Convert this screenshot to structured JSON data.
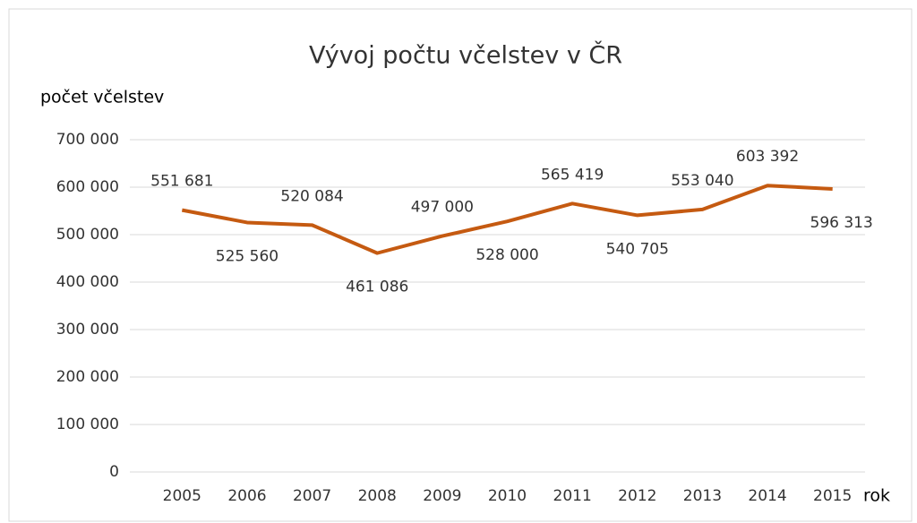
{
  "chart_data": {
    "type": "line",
    "title": "Vývoj počtu včelstev v ČR",
    "y_label": "počet včelstev",
    "x_label": "rok",
    "categories": [
      "2005",
      "2006",
      "2007",
      "2008",
      "2009",
      "2010",
      "2011",
      "2012",
      "2013",
      "2014",
      "2015"
    ],
    "series": [
      {
        "name": "počet včelstev",
        "color": "#c55a11",
        "values": [
          551681,
          525560,
          520084,
          461086,
          497000,
          528000,
          565419,
          540705,
          553040,
          603392,
          596313
        ],
        "value_labels": [
          "551 681",
          "525 560",
          "520 084",
          "461 086",
          "497 000",
          "528 000",
          "565 419",
          "540 705",
          "553 040",
          "603 392",
          "596 313"
        ]
      }
    ],
    "ylim": [
      0,
      700000
    ],
    "yticks": [
      0,
      {
        "value": 100000,
        "label": "100 000"
      },
      {
        "value": 200000,
        "label": "200 000"
      },
      {
        "value": 300000,
        "label": "300 000"
      },
      {
        "value": 400000,
        "label": "400 000"
      },
      {
        "value": 500000,
        "label": "500 000"
      },
      {
        "value": 600000,
        "label": "600 000"
      },
      {
        "value": 700000,
        "label": "700 000"
      }
    ],
    "grid": true
  }
}
